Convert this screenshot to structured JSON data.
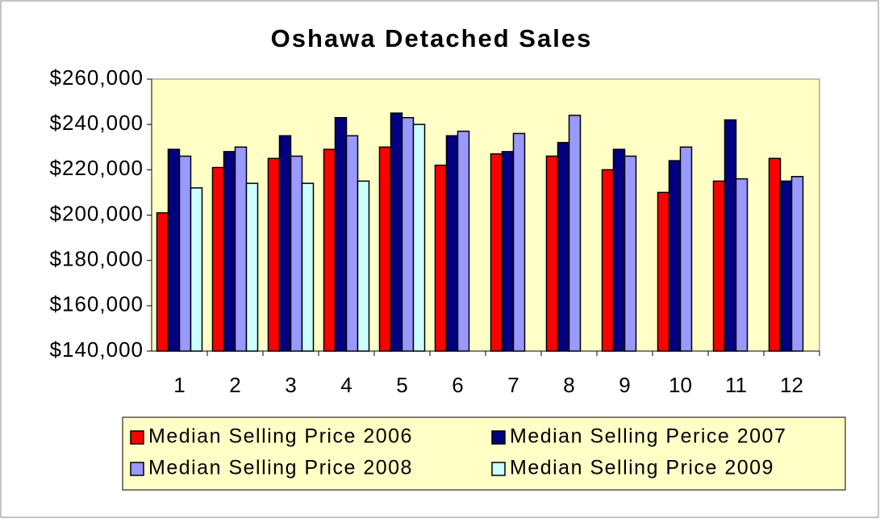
{
  "chart_data": {
    "type": "bar",
    "title": "Oshawa Detached Sales",
    "categories": [
      "1",
      "2",
      "3",
      "4",
      "5",
      "6",
      "7",
      "8",
      "9",
      "10",
      "11",
      "12"
    ],
    "series": [
      {
        "name": "Median Selling Price 2006",
        "color": "#ff0000",
        "values": [
          201000,
          221000,
          225000,
          229000,
          230000,
          222000,
          227000,
          226000,
          220000,
          210000,
          215000,
          225000
        ]
      },
      {
        "name": "Median Selling Perice 2007",
        "color": "#000080",
        "values": [
          229000,
          228000,
          235000,
          243000,
          245000,
          235000,
          228000,
          232000,
          229000,
          224000,
          242000,
          215000
        ]
      },
      {
        "name": "Median Selling Price 2008",
        "color": "#9999ff",
        "values": [
          226000,
          230000,
          226000,
          235000,
          243000,
          237000,
          236000,
          244000,
          226000,
          230000,
          216000,
          217000
        ]
      },
      {
        "name": "Median Selling Price 2009",
        "color": "#ccffff",
        "values": [
          212000,
          214000,
          214000,
          215000,
          240000,
          null,
          null,
          null,
          null,
          null,
          null,
          null
        ]
      }
    ],
    "ylim": [
      140000,
      260000
    ],
    "yticks": [
      {
        "value": 140000,
        "label": "$140,000"
      },
      {
        "value": 160000,
        "label": "$160,000"
      },
      {
        "value": 180000,
        "label": "$180,000"
      },
      {
        "value": 200000,
        "label": "$200,000"
      },
      {
        "value": 220000,
        "label": "$220,000"
      },
      {
        "value": 240000,
        "label": "$240,000"
      },
      {
        "value": 260000,
        "label": "$260,000"
      }
    ],
    "grid": false,
    "legend": "bottom"
  }
}
